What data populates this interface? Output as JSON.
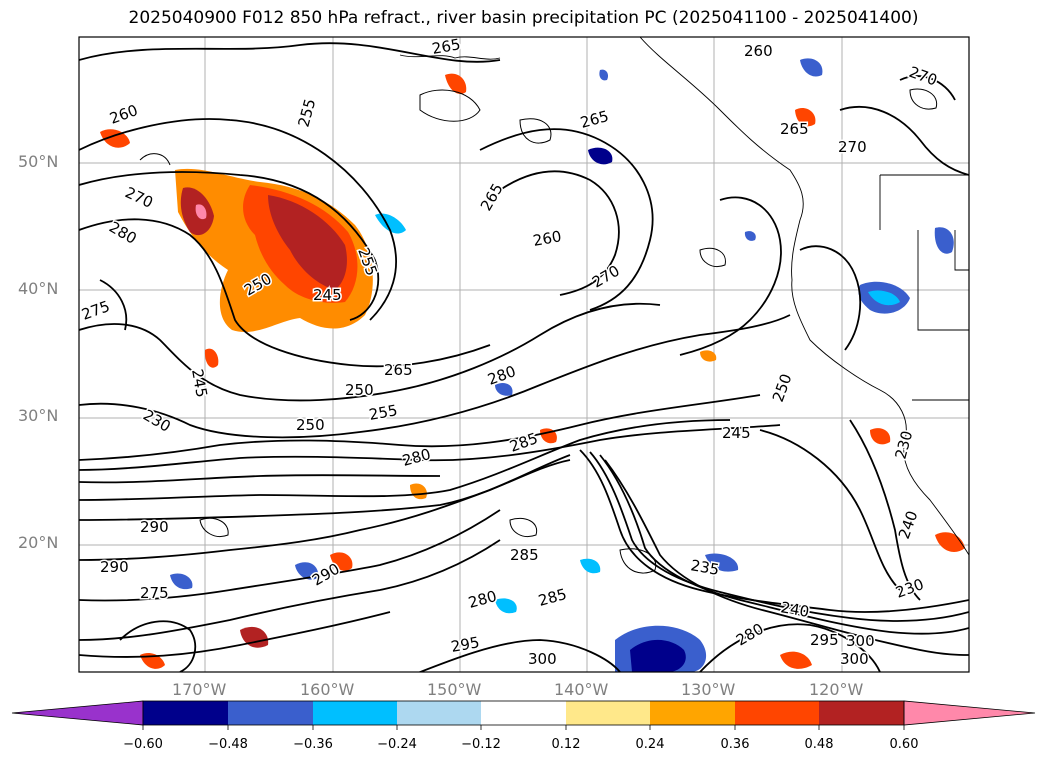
{
  "title": "2025040900 F012 850 hPa refract., river basin precipitation PC (2025041100 - 2025041400)",
  "map": {
    "lat_labels": [
      "50°N",
      "40°N",
      "30°N",
      "20°N"
    ],
    "lon_labels": [
      "170°W",
      "160°W",
      "150°W",
      "140°W",
      "130°W",
      "120°W"
    ],
    "contour_labels": [
      "260",
      "265",
      "255",
      "270",
      "280",
      "275",
      "250",
      "245",
      "265",
      "250",
      "250",
      "255",
      "280",
      "230",
      "245",
      "250",
      "255",
      "245",
      "290",
      "285",
      "290",
      "275",
      "280",
      "285",
      "295",
      "300",
      "260",
      "265",
      "270",
      "265",
      "260",
      "270",
      "240",
      "235",
      "240",
      "230",
      "280",
      "285",
      "290",
      "300",
      "265",
      "295",
      "300",
      "270",
      "280",
      "230"
    ],
    "colors": {
      "land_outline": "#000000",
      "grid": "#b0b0b0"
    }
  },
  "colorbar": {
    "ticks": [
      "−0.60",
      "−0.48",
      "−0.36",
      "−0.24",
      "−0.12",
      "0.12",
      "0.24",
      "0.36",
      "0.48",
      "0.60"
    ],
    "colors": [
      "#9932cc",
      "#00008b",
      "#3a5fcd",
      "#00bfff",
      "#add8f0",
      "#ffffff",
      "#ffe88a",
      "#ffa500",
      "#ff4500",
      "#b22222",
      "#ff88aa"
    ]
  }
}
